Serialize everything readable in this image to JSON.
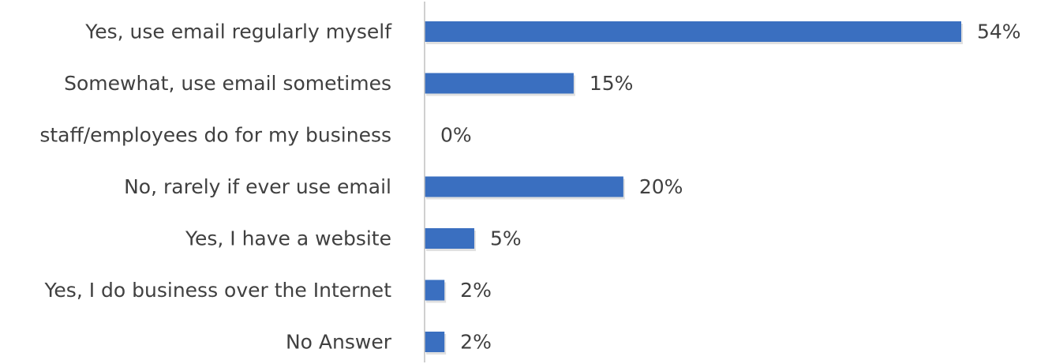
{
  "chart_data": {
    "type": "bar",
    "orientation": "horizontal",
    "categories": [
      "Yes, use email regularly myself",
      "Somewhat, use email sometimes",
      "staff/employees do for my business",
      "No, rarely if ever use email",
      "Yes, I have a website",
      "Yes, I do business over the Internet",
      "No Answer"
    ],
    "values": [
      54,
      15,
      0,
      20,
      5,
      2,
      2
    ],
    "value_labels": [
      "54%",
      "15%",
      "0%",
      "20%",
      "5%",
      "2%",
      "2%"
    ],
    "unit": "%",
    "xlim": [
      0,
      54
    ],
    "grid": false,
    "legend": "none",
    "bar_color": "#3a6fc0"
  }
}
